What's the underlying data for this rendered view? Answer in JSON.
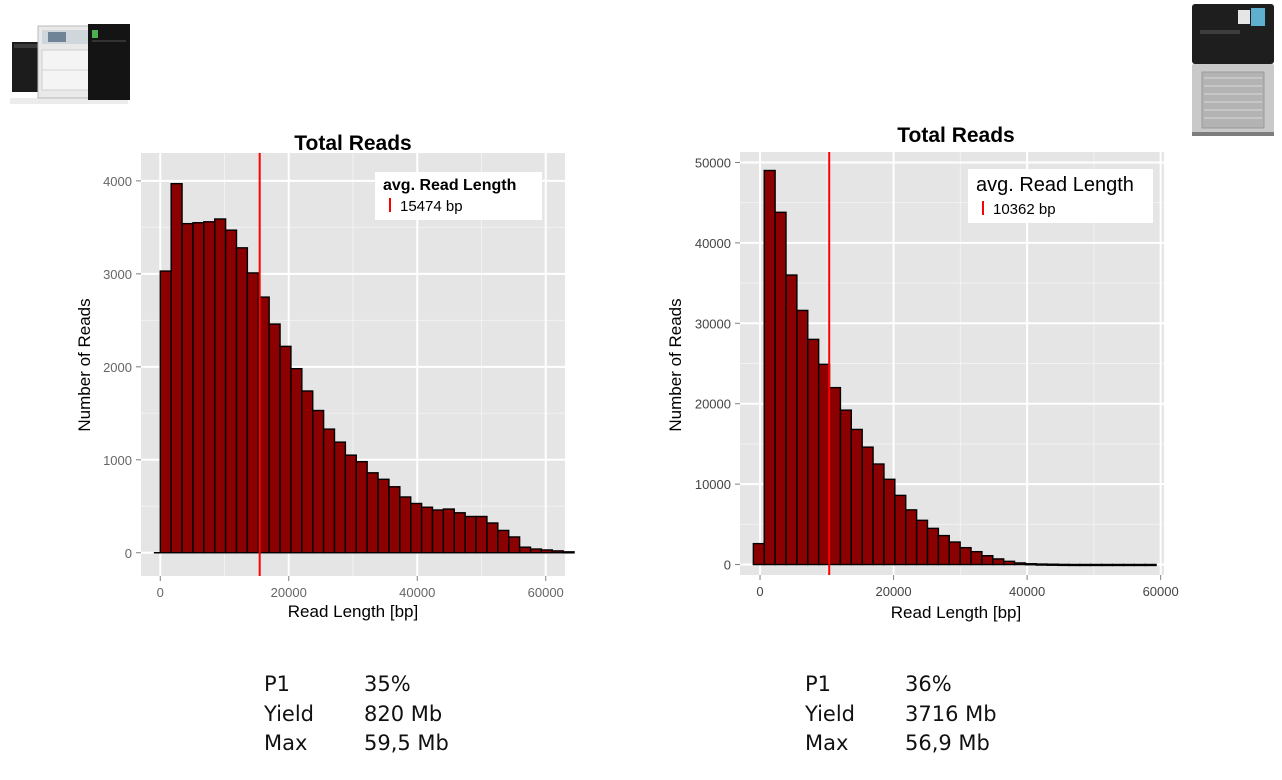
{
  "chart_data": [
    {
      "type": "bar",
      "title": "Total Reads",
      "xlabel": "Read Length [bp]",
      "ylabel": "Number of Reads",
      "xlim": [
        -3000,
        63000
      ],
      "ylim": [
        -250,
        4300
      ],
      "xticks": [
        0,
        20000,
        40000,
        60000
      ],
      "yticks": [
        0,
        1000,
        2000,
        3000,
        4000
      ],
      "grid": true,
      "bin_width": 1695,
      "bin_start": 0,
      "values": [
        3030,
        3970,
        3540,
        3550,
        3560,
        3590,
        3470,
        3280,
        3010,
        2750,
        2460,
        2220,
        1980,
        1740,
        1530,
        1330,
        1190,
        1050,
        980,
        860,
        790,
        710,
        600,
        530,
        490,
        460,
        470,
        430,
        390,
        390,
        320,
        240,
        170,
        60,
        40,
        30,
        20,
        10
      ],
      "baseline_from": -1000,
      "mean_line": 15474,
      "legend": {
        "title": "avg. Read Length",
        "label": "15474 bp",
        "position": "top-right"
      },
      "colors": {
        "bar": "#8b0000",
        "mean": "#ff0000",
        "panel": "#e5e5e5",
        "grid": "#ffffff"
      }
    },
    {
      "type": "bar",
      "title": "Total Reads",
      "xlabel": "Read Length [bp]",
      "ylabel": "Number of Reads",
      "xlim": [
        -3000,
        60500
      ],
      "ylim": [
        -1300,
        51300
      ],
      "xticks": [
        0,
        20000,
        40000,
        60000
      ],
      "yticks": [
        0,
        10000,
        20000,
        30000,
        40000,
        50000
      ],
      "grid": true,
      "bin_width": 1630,
      "bin_start": -1000,
      "values": [
        2600,
        49000,
        43800,
        36000,
        31600,
        28000,
        24900,
        22000,
        19200,
        16800,
        14600,
        12500,
        10600,
        8600,
        6800,
        5500,
        4500,
        3600,
        2800,
        2100,
        1600,
        1100,
        700,
        400,
        200,
        100,
        60,
        40,
        20,
        10,
        10,
        10,
        10,
        10,
        10,
        10,
        10
      ],
      "mean_line": 10362,
      "legend": {
        "title": "avg. Read Length",
        "label": "10362 bp",
        "position": "top-right"
      },
      "colors": {
        "bar": "#8b0000",
        "mean": "#ff0000",
        "panel": "#e5e5e5",
        "grid": "#ffffff"
      }
    }
  ],
  "stats_left": [
    {
      "key": "P1",
      "value": "35%"
    },
    {
      "key": "Yield",
      "value": "820 Mb"
    },
    {
      "key": "Max",
      "value": "59,5 Mb"
    }
  ],
  "stats_right": [
    {
      "key": "P1",
      "value": "36%"
    },
    {
      "key": "Yield",
      "value": "3716 Mb"
    },
    {
      "key": "Max",
      "value": "56,9 Mb"
    }
  ],
  "icons": {
    "left_device": "sequencer-rs-icon",
    "right_device": "sequencer-sequel-icon"
  }
}
